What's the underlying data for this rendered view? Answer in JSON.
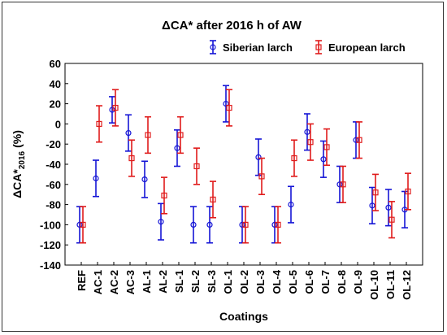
{
  "chart_data": {
    "type": "scatter",
    "title": "ΔCA* after 2016 h of AW",
    "xlabel": "Coatings",
    "ylabel": "ΔCA*",
    "ylabel_sub": "2016",
    "ylabel_unit": "(%)",
    "ylim": [
      -140,
      60
    ],
    "yticks": [
      60,
      40,
      20,
      0,
      -20,
      -40,
      -60,
      -80,
      -100,
      -120,
      -140
    ],
    "grid": false,
    "legend_position": "top-right",
    "categories": [
      "REF",
      "AC-1",
      "AC-2",
      "AC-3",
      "AL-1",
      "AL-2",
      "SL-1",
      "SL-2",
      "SL-3",
      "OL-1",
      "OL-2",
      "OL-3",
      "OL-4",
      "OL-5",
      "OL-6",
      "OL-7",
      "OL-8",
      "OL-9",
      "OL-10",
      "OL-11",
      "OL-12"
    ],
    "series": [
      {
        "name": "Siberian larch",
        "color": "#1515d6",
        "marker": "circle",
        "values": [
          -100,
          -54,
          14,
          -9,
          -55,
          -97,
          -24,
          -100,
          -100,
          20,
          -100,
          -33,
          -100,
          -80,
          -8,
          -35,
          -60,
          -16,
          -81,
          -83,
          -85
        ],
        "err": [
          18,
          18,
          13,
          18,
          18,
          18,
          18,
          18,
          18,
          18,
          18,
          18,
          18,
          18,
          18,
          18,
          18,
          18,
          18,
          18,
          18
        ]
      },
      {
        "name": "European larch",
        "color": "#e01b1b",
        "marker": "square",
        "values": [
          -100,
          0,
          16,
          -34,
          -11,
          -71,
          -11,
          -42,
          -75,
          16,
          -100,
          -52,
          -100,
          -34,
          -18,
          -23,
          -60,
          -16,
          -68,
          -95,
          -67
        ],
        "err": [
          18,
          18,
          18,
          18,
          18,
          18,
          18,
          18,
          18,
          18,
          18,
          18,
          18,
          18,
          18,
          18,
          18,
          18,
          18,
          18,
          18
        ]
      }
    ]
  }
}
